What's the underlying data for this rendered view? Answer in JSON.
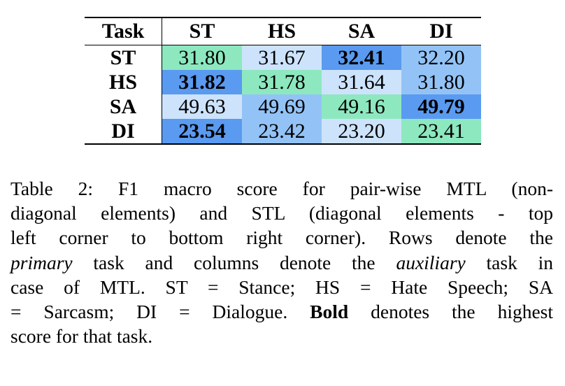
{
  "table": {
    "header": [
      "Task",
      "ST",
      "HS",
      "SA",
      "DI"
    ],
    "rows": [
      {
        "label": "ST",
        "cells": [
          {
            "value": "31.80",
            "bold": false,
            "color": "#8de8bf"
          },
          {
            "value": "31.67",
            "bold": false,
            "color": "#cde3fb"
          },
          {
            "value": "32.41",
            "bold": true,
            "color": "#5a9af0"
          },
          {
            "value": "32.20",
            "bold": false,
            "color": "#93c3f6"
          }
        ]
      },
      {
        "label": "HS",
        "cells": [
          {
            "value": "31.82",
            "bold": true,
            "color": "#5a9af0"
          },
          {
            "value": "31.78",
            "bold": false,
            "color": "#8de8bf"
          },
          {
            "value": "31.64",
            "bold": false,
            "color": "#cde3fb"
          },
          {
            "value": "31.80",
            "bold": false,
            "color": "#93c3f6"
          }
        ]
      },
      {
        "label": "SA",
        "cells": [
          {
            "value": "49.63",
            "bold": false,
            "color": "#cde3fb"
          },
          {
            "value": "49.69",
            "bold": false,
            "color": "#93c3f6"
          },
          {
            "value": "49.16",
            "bold": false,
            "color": "#8de8bf"
          },
          {
            "value": "49.79",
            "bold": true,
            "color": "#5a9af0"
          }
        ]
      },
      {
        "label": "DI",
        "cells": [
          {
            "value": "23.54",
            "bold": true,
            "color": "#5a9af0"
          },
          {
            "value": "23.42",
            "bold": false,
            "color": "#93c3f6"
          },
          {
            "value": "23.20",
            "bold": false,
            "color": "#cde3fb"
          },
          {
            "value": "23.41",
            "bold": false,
            "color": "#8de8bf"
          }
        ]
      }
    ]
  },
  "caption": {
    "l1": "Table 2:  F1 macro score for pair-wise MTL (non-",
    "l2": "diagonal elements) and STL (diagonal elements - top",
    "l3": "left corner to bottom right corner).  Rows denote the",
    "l4_italic1": "primary",
    "l4_a": " task and columns denote the ",
    "l4_italic2": "auxiliary",
    "l4_b": " task in",
    "l5": "case of MTL. ST = Stance; HS = Hate Speech; SA",
    "l6_a": "= Sarcasm; DI = Dialogue.  ",
    "l6_bold": "Bold",
    "l6_b": " denotes the highest",
    "l7": "score for that task."
  }
}
